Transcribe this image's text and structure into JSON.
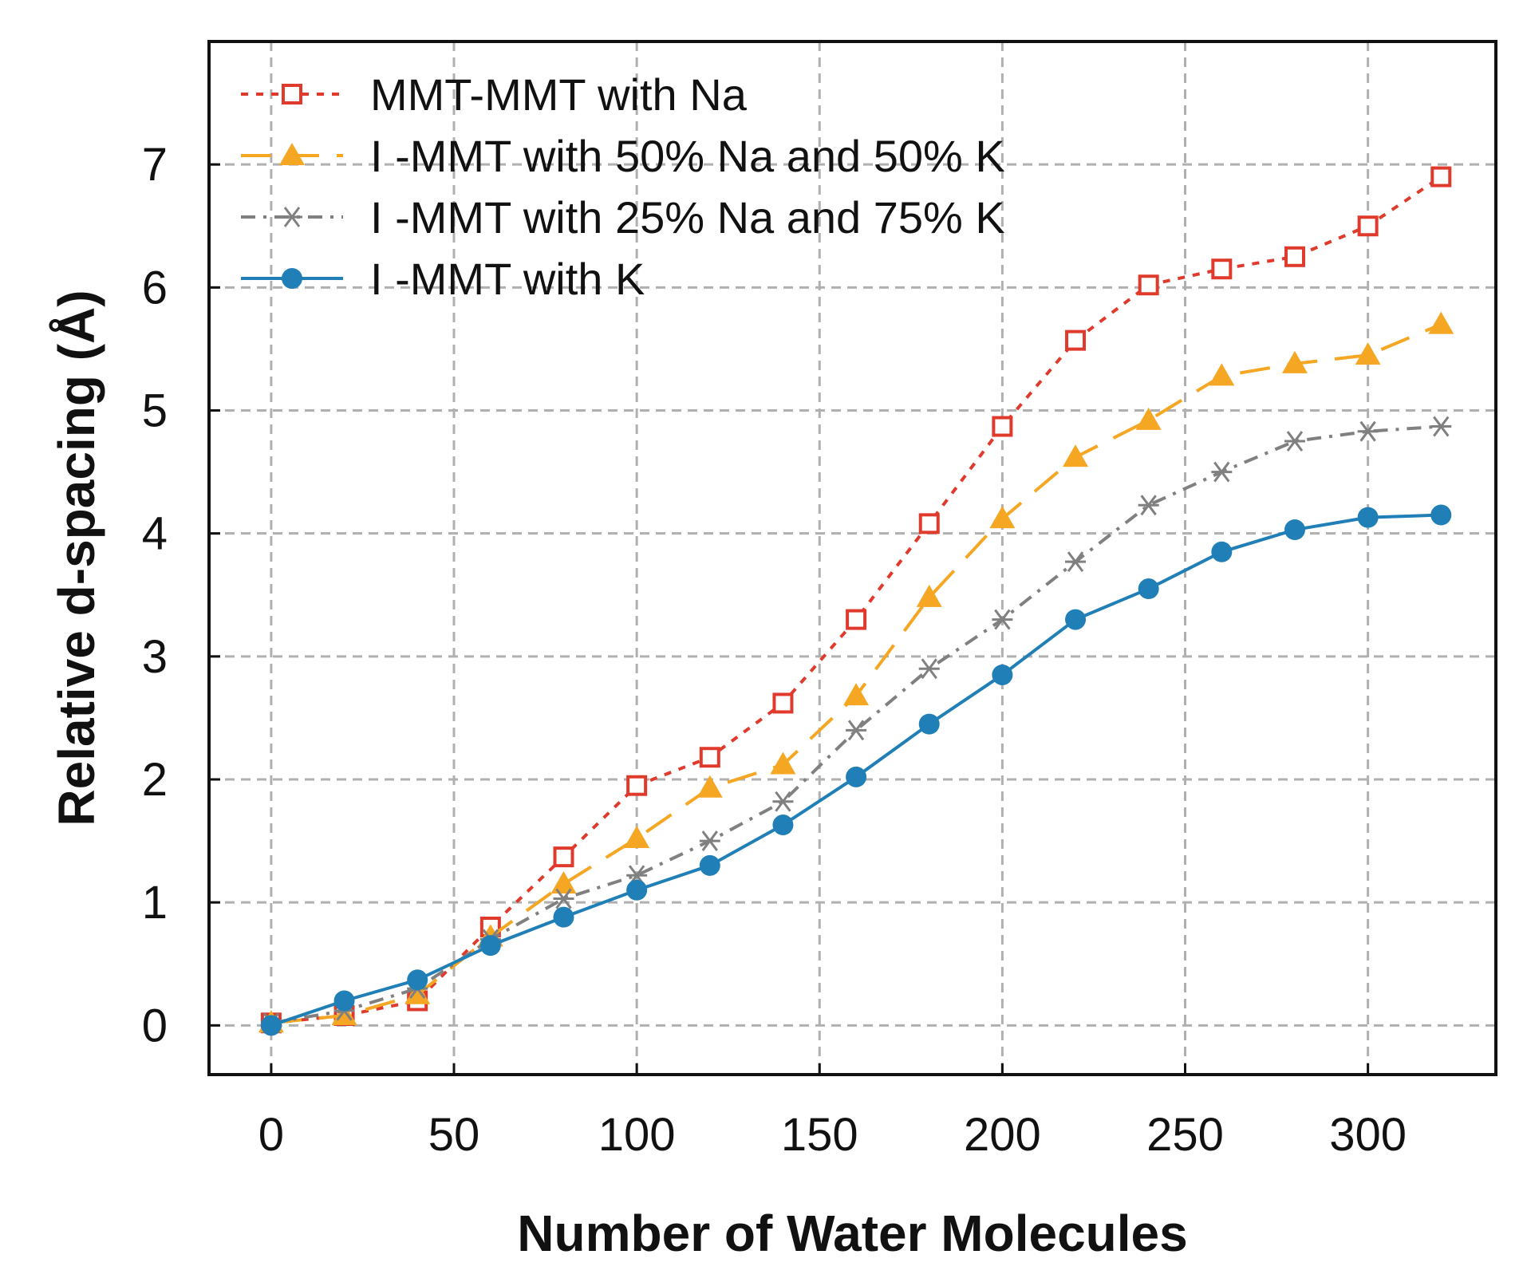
{
  "chart_data": {
    "type": "line",
    "title": "",
    "xlabel": "Number of Water Molecules",
    "ylabel": "Relative d-spacing (Å)",
    "xlim": [
      -17,
      335
    ],
    "ylim": [
      -0.4,
      8.0
    ],
    "xticks": [
      0,
      50,
      100,
      150,
      200,
      250,
      300
    ],
    "yticks": [
      0,
      1,
      2,
      3,
      4,
      5,
      6,
      7
    ],
    "grid": true,
    "legend_position": "top-left",
    "x": [
      0,
      20,
      40,
      60,
      80,
      100,
      120,
      140,
      160,
      180,
      200,
      220,
      240,
      260,
      280,
      300,
      320
    ],
    "series": [
      {
        "name": "MMT-MMT with Na",
        "color": "#e03a2c",
        "line": "dotted",
        "marker": "open-square",
        "values": [
          0.02,
          0.08,
          0.2,
          0.8,
          1.37,
          1.95,
          2.18,
          2.62,
          3.3,
          4.08,
          4.87,
          5.57,
          6.02,
          6.15,
          6.25,
          6.5,
          6.9
        ]
      },
      {
        "name": "I -MMT with 50% Na and 50% K",
        "color": "#f5a623",
        "line": "dashed",
        "marker": "filled-triangle",
        "values": [
          0.02,
          0.08,
          0.25,
          0.72,
          1.15,
          1.52,
          1.93,
          2.12,
          2.68,
          3.48,
          4.12,
          4.62,
          4.92,
          5.28,
          5.38,
          5.45,
          5.7
        ]
      },
      {
        "name": "I -MMT with 25% Na and 75% K",
        "color": "#808080",
        "line": "dash-dot",
        "marker": "asterisk",
        "values": [
          0.02,
          0.12,
          0.3,
          0.7,
          1.03,
          1.22,
          1.5,
          1.82,
          2.4,
          2.9,
          3.3,
          3.77,
          4.23,
          4.5,
          4.75,
          4.83,
          4.87
        ]
      },
      {
        "name": "I -MMT with  K",
        "color": "#1f7fb6",
        "line": "solid",
        "marker": "filled-circle",
        "values": [
          0.0,
          0.2,
          0.37,
          0.65,
          0.88,
          1.1,
          1.3,
          1.63,
          2.02,
          2.45,
          2.85,
          3.3,
          3.55,
          3.85,
          4.03,
          4.13,
          4.15
        ]
      }
    ]
  }
}
